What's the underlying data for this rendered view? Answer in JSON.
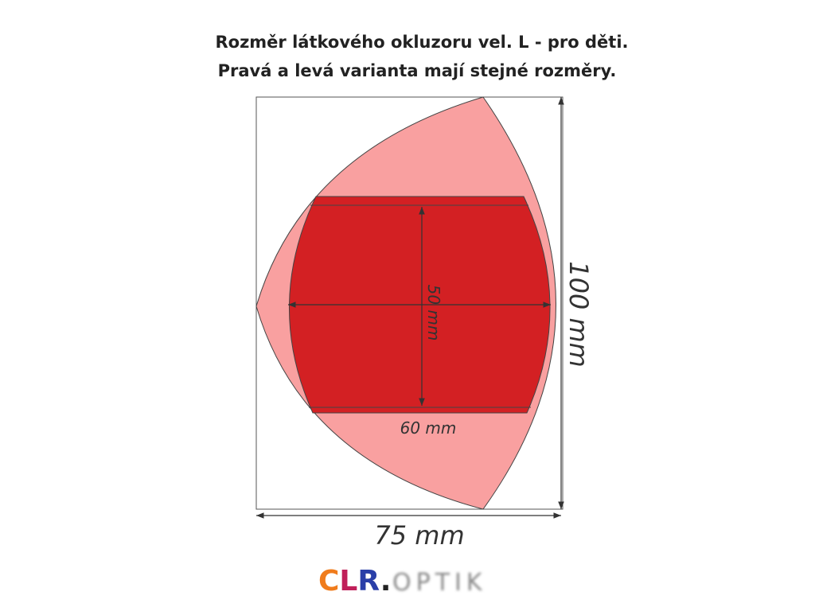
{
  "header": {
    "title_lines": [
      "Rozměr látkového okluzoru vel. L - pro děti.",
      "Pravá a levá varianta mají stejné rozměry."
    ]
  },
  "dimensions": {
    "outer_height": "100 mm",
    "outer_width": "75 mm",
    "inner_height": "50 mm",
    "inner_width": "60 mm"
  },
  "logo": {
    "letters": [
      "C",
      "L",
      "R"
    ],
    "dot": ".",
    "suffix": "OPTIK"
  }
}
